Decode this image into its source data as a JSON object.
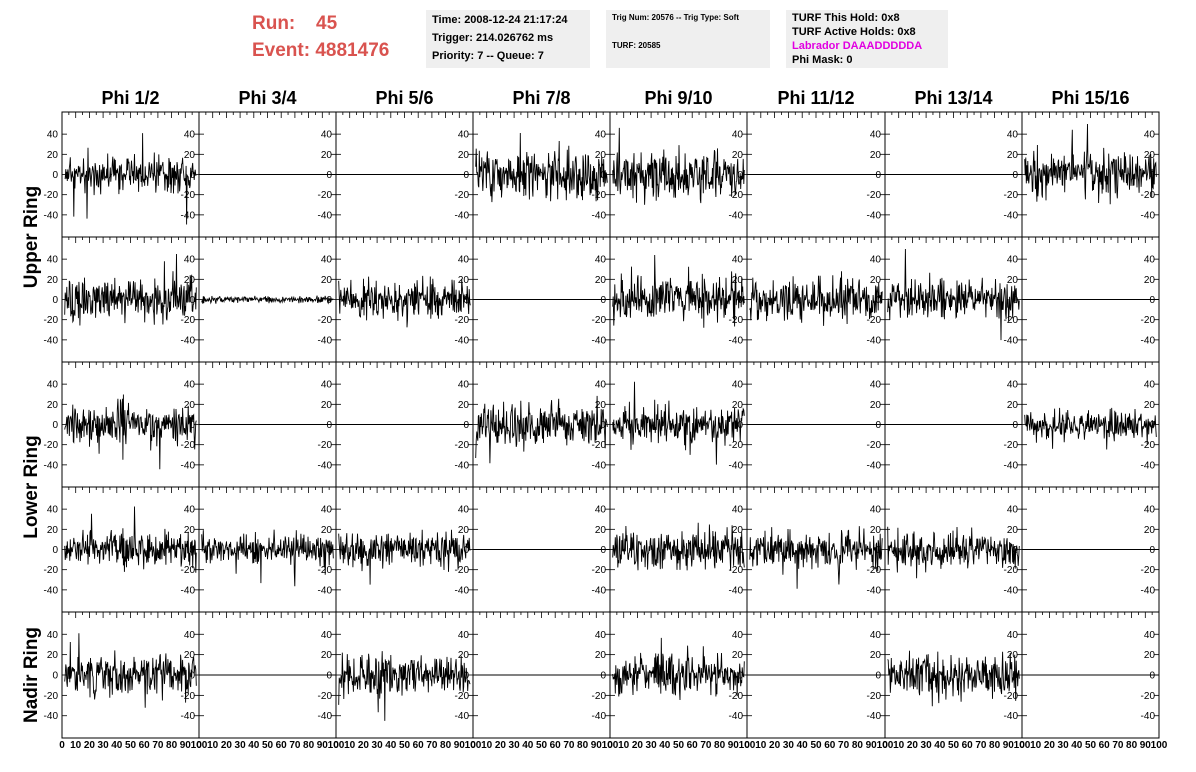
{
  "header": {
    "run_label": "Run:",
    "run_value": "45",
    "event_label": "Event:",
    "event_value": "4881476"
  },
  "info": {
    "time": "Time: 2008-12-24 21:17:24",
    "trigger": "Trigger: 214.026762 ms",
    "priority": "Priority: 7 -- Queue: 7",
    "trig_num": "Trig Num: 20576 -- Trig Type: Soft",
    "turf": "TURF: 20585",
    "turf_hold": "TURF This Hold: 0x8",
    "turf_active": "TURF Active Holds: 0x8",
    "labrador": "Labrador DAAADDDDDA",
    "phi_mask": "Phi Mask: 0"
  },
  "colors": {
    "header_red": "#d9534f",
    "labrador_magenta": "#e100e1",
    "info_bg": "#efefef",
    "trace": "#000000"
  },
  "chart_data": {
    "type": "line",
    "columns": [
      "Phi 1/2",
      "Phi 3/4",
      "Phi 5/6",
      "Phi 7/8",
      "Phi 9/10",
      "Phi 11/12",
      "Phi 13/14",
      "Phi 15/16"
    ],
    "row_groups": [
      {
        "label": "Upper Ring",
        "rows": [
          0,
          1
        ]
      },
      {
        "label": "Lower Ring",
        "rows": [
          2,
          3
        ]
      },
      {
        "label": "Nadir Ring",
        "rows": [
          4
        ]
      }
    ],
    "xlim": [
      0,
      100
    ],
    "xticks": [
      0,
      10,
      20,
      30,
      40,
      50,
      60,
      70,
      80,
      90,
      100
    ],
    "ylim": [
      -55,
      55
    ],
    "yticks": [
      -40,
      -20,
      0,
      20,
      40
    ],
    "traces": [
      [
        {
          "kind": "noise",
          "amp": 11,
          "seed": 11
        },
        {
          "kind": "flat",
          "amp": 0,
          "seed": 12
        },
        {
          "kind": "flat",
          "amp": 0,
          "seed": 13
        },
        {
          "kind": "noise",
          "amp": 14,
          "seed": 14
        },
        {
          "kind": "noise",
          "amp": 14,
          "seed": 15
        },
        {
          "kind": "flat",
          "amp": 0,
          "seed": 16
        },
        {
          "kind": "flat",
          "amp": 0,
          "seed": 17
        },
        {
          "kind": "noise",
          "amp": 13,
          "seed": 18
        }
      ],
      [
        {
          "kind": "noise",
          "amp": 13,
          "seed": 21
        },
        {
          "kind": "noise",
          "amp": 2,
          "seed": 22
        },
        {
          "kind": "noise",
          "amp": 12,
          "seed": 23
        },
        {
          "kind": "flat",
          "amp": 0,
          "seed": 24
        },
        {
          "kind": "noise",
          "amp": 13,
          "seed": 25
        },
        {
          "kind": "noise",
          "amp": 13,
          "seed": 26
        },
        {
          "kind": "noise",
          "amp": 12,
          "seed": 27
        },
        {
          "kind": "flat",
          "amp": 0,
          "seed": 28
        }
      ],
      [
        {
          "kind": "noise",
          "amp": 12,
          "seed": 31
        },
        {
          "kind": "flat",
          "amp": 0,
          "seed": 32
        },
        {
          "kind": "flat",
          "amp": 0,
          "seed": 33
        },
        {
          "kind": "noise",
          "amp": 13,
          "seed": 34
        },
        {
          "kind": "noise",
          "amp": 12,
          "seed": 35
        },
        {
          "kind": "flat",
          "amp": 0,
          "seed": 36
        },
        {
          "kind": "flat",
          "amp": 0,
          "seed": 37
        },
        {
          "kind": "noise",
          "amp": 9,
          "seed": 38
        }
      ],
      [
        {
          "kind": "noise",
          "amp": 11,
          "seed": 41
        },
        {
          "kind": "noise",
          "amp": 9,
          "seed": 42
        },
        {
          "kind": "noise",
          "amp": 11,
          "seed": 43
        },
        {
          "kind": "flat",
          "amp": 0,
          "seed": 44
        },
        {
          "kind": "noise",
          "amp": 12,
          "seed": 45
        },
        {
          "kind": "noise",
          "amp": 11,
          "seed": 46
        },
        {
          "kind": "noise",
          "amp": 11,
          "seed": 47
        },
        {
          "kind": "flat",
          "amp": 0,
          "seed": 48
        }
      ],
      [
        {
          "kind": "noise",
          "amp": 12,
          "seed": 51
        },
        {
          "kind": "flat",
          "amp": 0,
          "seed": 52
        },
        {
          "kind": "noise",
          "amp": 13,
          "seed": 53
        },
        {
          "kind": "flat",
          "amp": 0,
          "seed": 54
        },
        {
          "kind": "noise",
          "amp": 12,
          "seed": 55
        },
        {
          "kind": "flat",
          "amp": 0,
          "seed": 56
        },
        {
          "kind": "noise",
          "amp": 13,
          "seed": 57
        },
        {
          "kind": "flat",
          "amp": 0,
          "seed": 58
        }
      ]
    ]
  }
}
